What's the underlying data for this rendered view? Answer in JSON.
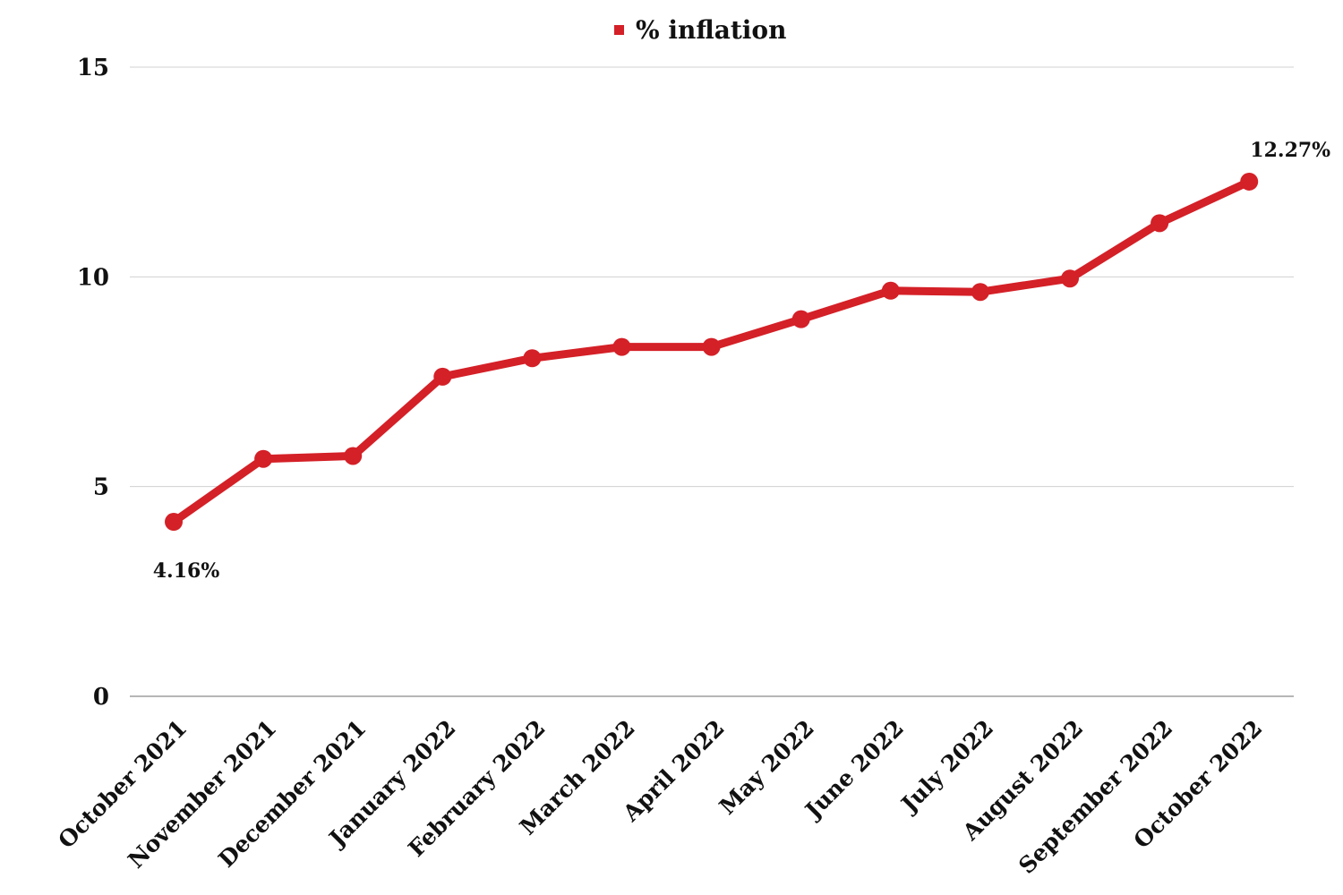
{
  "chart_data": {
    "type": "line",
    "title": "",
    "xlabel": "",
    "ylabel": "",
    "categories": [
      "October 2021",
      "November 2021",
      "December 2021",
      "January 2022",
      "February 2022",
      "March 2022",
      "April 2022",
      "May 2022",
      "June 2022",
      "July 2022",
      "August 2022",
      "September 2022",
      "October 2022"
    ],
    "series": [
      {
        "name": "% inflation",
        "color": "#d42027",
        "values": [
          4.16,
          5.66,
          5.73,
          7.62,
          8.06,
          8.33,
          8.33,
          8.99,
          9.67,
          9.64,
          9.96,
          11.28,
          12.27
        ]
      }
    ],
    "ylim": [
      0,
      15
    ],
    "yticks": [
      "0",
      "5",
      "10",
      "15"
    ],
    "grid": true,
    "legend_position": "top-center",
    "data_labels": [
      {
        "index": 0,
        "text": "4.16%",
        "placement": "below"
      },
      {
        "index": 12,
        "text": "12.27%",
        "placement": "above"
      }
    ]
  }
}
